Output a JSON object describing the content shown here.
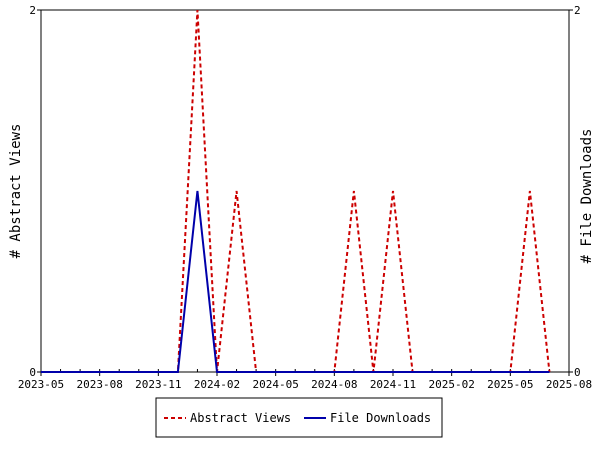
{
  "chart_data": {
    "type": "line",
    "title": "",
    "x_ticks": [
      "2023-05",
      "2023-08",
      "2023-11",
      "2024-02",
      "2024-05",
      "2024-08",
      "2024-11",
      "2025-02",
      "2025-05",
      "2025-08"
    ],
    "ylabel_left": "# Abstract Views",
    "ylabel_right": "# File Downloads",
    "ylim_left": [
      0,
      2
    ],
    "ylim_right": [
      0,
      2
    ],
    "y_ticks_left": [
      "0",
      "2"
    ],
    "y_ticks_right": [
      "0",
      "2"
    ],
    "grid": false,
    "legend_position": "bottom",
    "x": [
      "2023-05",
      "2023-06",
      "2023-07",
      "2023-08",
      "2023-09",
      "2023-10",
      "2023-11",
      "2023-12",
      "2024-01",
      "2024-02",
      "2024-03",
      "2024-04",
      "2024-05",
      "2024-06",
      "2024-07",
      "2024-08",
      "2024-09",
      "2024-10",
      "2024-11",
      "2024-12",
      "2025-01",
      "2025-02",
      "2025-03",
      "2025-04",
      "2025-05",
      "2025-06",
      "2025-07"
    ],
    "series": [
      {
        "name": "Abstract Views",
        "color": "#cc0000",
        "dash": "dashed",
        "axis": "left",
        "values": [
          0,
          0,
          0,
          0,
          0,
          0,
          0,
          0,
          2,
          0,
          1,
          0,
          0,
          0,
          0,
          0,
          1,
          0,
          1,
          0,
          0,
          0,
          0,
          0,
          0,
          1,
          0
        ]
      },
      {
        "name": "File Downloads",
        "color": "#0000aa",
        "dash": "solid",
        "axis": "right",
        "values": [
          0,
          0,
          0,
          0,
          0,
          0,
          0,
          0,
          1,
          0,
          0,
          0,
          0,
          0,
          0,
          0,
          0,
          0,
          0,
          0,
          0,
          0,
          0,
          0,
          0,
          0,
          0
        ]
      }
    ]
  }
}
